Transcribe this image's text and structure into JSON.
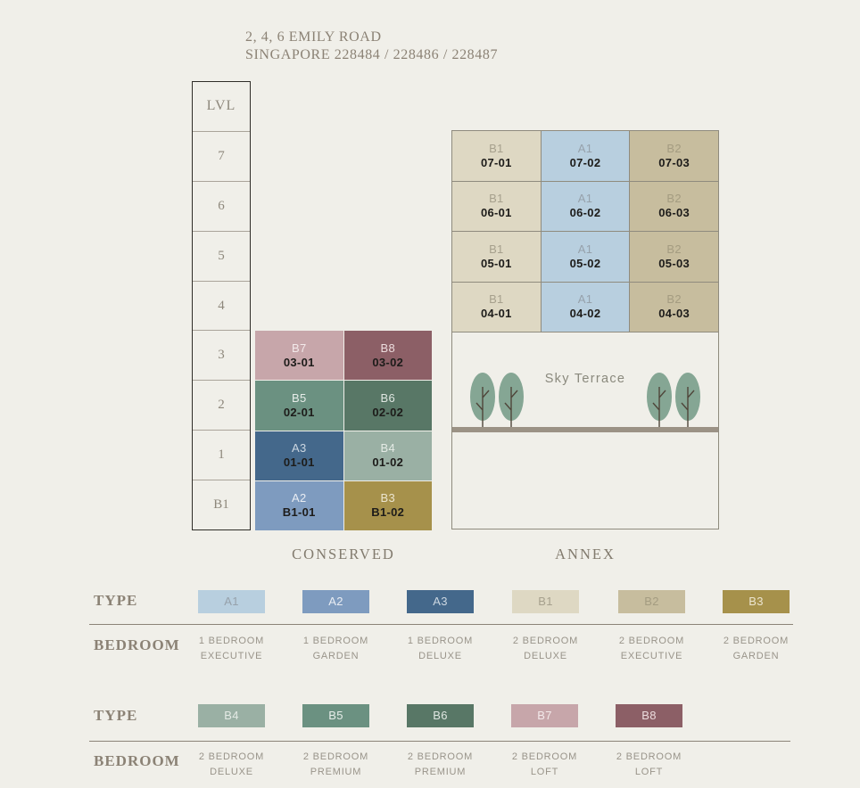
{
  "header": {
    "title": "2, 4, 6 EMILY ROAD",
    "address": "SINGAPORE 228484 / 228486 / 228487"
  },
  "levels_column": {
    "header": "LVL",
    "levels": [
      "7",
      "6",
      "5",
      "4",
      "3",
      "2",
      "1",
      "B1"
    ]
  },
  "types": [
    {
      "code": "A1",
      "bg": "#b8cfdf",
      "fg": "#96a1ab"
    },
    {
      "code": "A2",
      "bg": "#7e9bbf",
      "fg": "#e9edf3"
    },
    {
      "code": "A3",
      "bg": "#44688b",
      "fg": "#ccd7e1"
    },
    {
      "code": "B1",
      "bg": "#ded8c3",
      "fg": "#a6a08d"
    },
    {
      "code": "B2",
      "bg": "#c7bd9e",
      "fg": "#a49c81"
    },
    {
      "code": "B3",
      "bg": "#a6914b",
      "fg": "#ece5cf"
    },
    {
      "code": "B4",
      "bg": "#9ab0a4",
      "fg": "#e4eae5"
    },
    {
      "code": "B5",
      "bg": "#6b9181",
      "fg": "#e7ede9"
    },
    {
      "code": "B6",
      "bg": "#587766",
      "fg": "#dfe6e1"
    },
    {
      "code": "B7",
      "bg": "#c7a6aa",
      "fg": "#f3e9ea"
    },
    {
      "code": "B8",
      "bg": "#8c5f66",
      "fg": "#ecdcdd"
    }
  ],
  "conserved": {
    "label": "CONSERVED",
    "rows": [
      [
        {
          "type": "B7",
          "unit": "03-01"
        },
        {
          "type": "B8",
          "unit": "03-02"
        }
      ],
      [
        {
          "type": "B5",
          "unit": "02-01"
        },
        {
          "type": "B6",
          "unit": "02-02"
        }
      ],
      [
        {
          "type": "A3",
          "unit": "01-01"
        },
        {
          "type": "B4",
          "unit": "01-02"
        }
      ],
      [
        {
          "type": "A2",
          "unit": "B1-01"
        },
        {
          "type": "B3",
          "unit": "B1-02"
        }
      ]
    ]
  },
  "annex": {
    "label": "ANNEX",
    "sky_terrace_label": "Sky Terrace",
    "rows": [
      [
        {
          "type": "B1",
          "unit": "07-01"
        },
        {
          "type": "A1",
          "unit": "07-02"
        },
        {
          "type": "B2",
          "unit": "07-03"
        }
      ],
      [
        {
          "type": "B1",
          "unit": "06-01"
        },
        {
          "type": "A1",
          "unit": "06-02"
        },
        {
          "type": "B2",
          "unit": "06-03"
        }
      ],
      [
        {
          "type": "B1",
          "unit": "05-01"
        },
        {
          "type": "A1",
          "unit": "05-02"
        },
        {
          "type": "B2",
          "unit": "05-03"
        }
      ],
      [
        {
          "type": "B1",
          "unit": "04-01"
        },
        {
          "type": "A1",
          "unit": "04-02"
        },
        {
          "type": "B2",
          "unit": "04-03"
        }
      ]
    ]
  },
  "legend": {
    "type_label": "TYPE",
    "bedroom_label": "BEDROOM",
    "row1": [
      {
        "type": "A1",
        "bedroom_line1": "1 BEDROOM",
        "bedroom_line2": "EXECUTIVE"
      },
      {
        "type": "A2",
        "bedroom_line1": "1 BEDROOM",
        "bedroom_line2": "GARDEN"
      },
      {
        "type": "A3",
        "bedroom_line1": "1 BEDROOM",
        "bedroom_line2": "DELUXE"
      },
      {
        "type": "B1",
        "bedroom_line1": "2 BEDROOM",
        "bedroom_line2": "DELUXE"
      },
      {
        "type": "B2",
        "bedroom_line1": "2 BEDROOM",
        "bedroom_line2": "EXECUTIVE"
      },
      {
        "type": "B3",
        "bedroom_line1": "2 BEDROOM",
        "bedroom_line2": "GARDEN"
      }
    ],
    "row2": [
      {
        "type": "B4",
        "bedroom_line1": "2 BEDROOM",
        "bedroom_line2": "DELUXE"
      },
      {
        "type": "B5",
        "bedroom_line1": "2 BEDROOM",
        "bedroom_line2": "PREMIUM"
      },
      {
        "type": "B6",
        "bedroom_line1": "2 BEDROOM",
        "bedroom_line2": "PREMIUM"
      },
      {
        "type": "B7",
        "bedroom_line1": "2 BEDROOM",
        "bedroom_line2": "LOFT"
      },
      {
        "type": "B8",
        "bedroom_line1": "2 BEDROOM",
        "bedroom_line2": "LOFT"
      }
    ]
  },
  "colors": {
    "background": "#f0efe9",
    "title_text": "#8b8275",
    "level_text": "#8d877b",
    "level_box_border": "#2f2d28",
    "section_label_text": "#827b6e",
    "legend_serif_text": "#8b8275",
    "bedroom_desc_text": "#99948a",
    "divider_line": "#8b8478",
    "annex_border": "#8f8b7e",
    "terrace_bar": "#9b9285",
    "tree_foliage": "#85a694",
    "tree_trunk": "#4f463a",
    "unit_number_text": "#1d1c1a"
  }
}
